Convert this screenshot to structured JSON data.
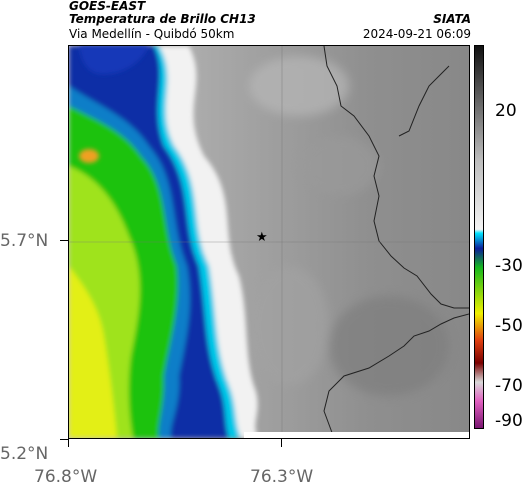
{
  "header": {
    "title_line1": "GOES-EAST",
    "title_line2": "Temperatura de Brillo CH13",
    "subtitle": "Via Medellín - Quibdó 50km",
    "provider": "SIATA",
    "timestamp": "2024-09-21 06:09"
  },
  "axes": {
    "y_ticks": [
      {
        "label": "5.7°N",
        "lat": 5.7
      },
      {
        "label": "5.2°N",
        "lat": 5.2
      }
    ],
    "x_ticks": [
      {
        "label": "76.8°W",
        "lon": -76.8
      },
      {
        "label": "76.3°W",
        "lon": -76.3
      }
    ]
  },
  "colorbar": {
    "ticks": [
      {
        "label": "20",
        "value": 20
      },
      {
        "label": "-30",
        "value": -30
      },
      {
        "label": "-50",
        "value": -50
      },
      {
        "label": "-70",
        "value": -70
      },
      {
        "label": "-90",
        "value": -90
      }
    ],
    "range": [
      -95,
      35
    ]
  },
  "marker": {
    "symbol": "★",
    "lat": 5.7,
    "lon": -76.32
  },
  "colors": {
    "warm_gray": "#8c8c8c",
    "cloud_white": "#f4f4f4",
    "cold_cyan": "#00b4d8",
    "cold_blue": "#0a2a9a",
    "cold_green": "#22c10e",
    "cold_yellow": "#e8ee10"
  }
}
